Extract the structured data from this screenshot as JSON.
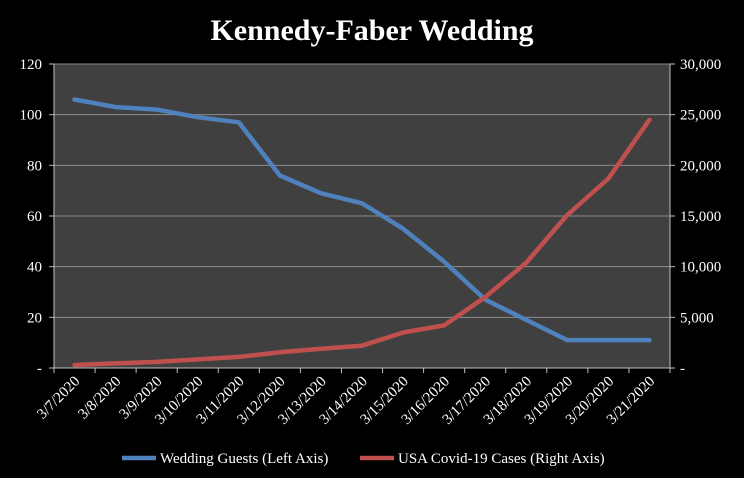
{
  "chart_data": {
    "type": "line",
    "title": "Kennedy-Faber Wedding",
    "x": [
      "3/7/2020",
      "3/8/2020",
      "3/9/2020",
      "3/10/2020",
      "3/11/2020",
      "3/12/2020",
      "3/13/2020",
      "3/14/2020",
      "3/15/2020",
      "3/16/2020",
      "3/17/2020",
      "3/18/2020",
      "3/19/2020",
      "3/20/2020",
      "3/21/2020"
    ],
    "y_left": {
      "ylim": [
        0,
        120
      ],
      "ticks": [
        "-",
        "20",
        "40",
        "60",
        "80",
        "100",
        "120"
      ]
    },
    "y_right": {
      "ylim": [
        0,
        30000
      ],
      "ticks": [
        "-",
        "5,000",
        "10,000",
        "15,000",
        "20,000",
        "25,000",
        "30,000"
      ]
    },
    "grid": true,
    "legend_position": "bottom",
    "series": [
      {
        "name": "Wedding Guests (Left Axis)",
        "axis": "left",
        "color": "#4F81BD",
        "values": [
          106,
          103,
          102,
          99,
          97,
          76,
          69,
          65,
          55,
          42,
          27,
          19,
          11,
          11,
          11
        ]
      },
      {
        "name": "USA Covid-19 Cases (Right Axis)",
        "axis": "right",
        "color": "#C0504D",
        "values": [
          300,
          450,
          600,
          850,
          1100,
          1550,
          1900,
          2200,
          3500,
          4200,
          7000,
          10400,
          15100,
          18700,
          24500
        ]
      }
    ]
  },
  "colors": {
    "background": "#000000",
    "plot_area": "#404040",
    "gridline": "#8C8C8C",
    "text": "#ffffff"
  }
}
